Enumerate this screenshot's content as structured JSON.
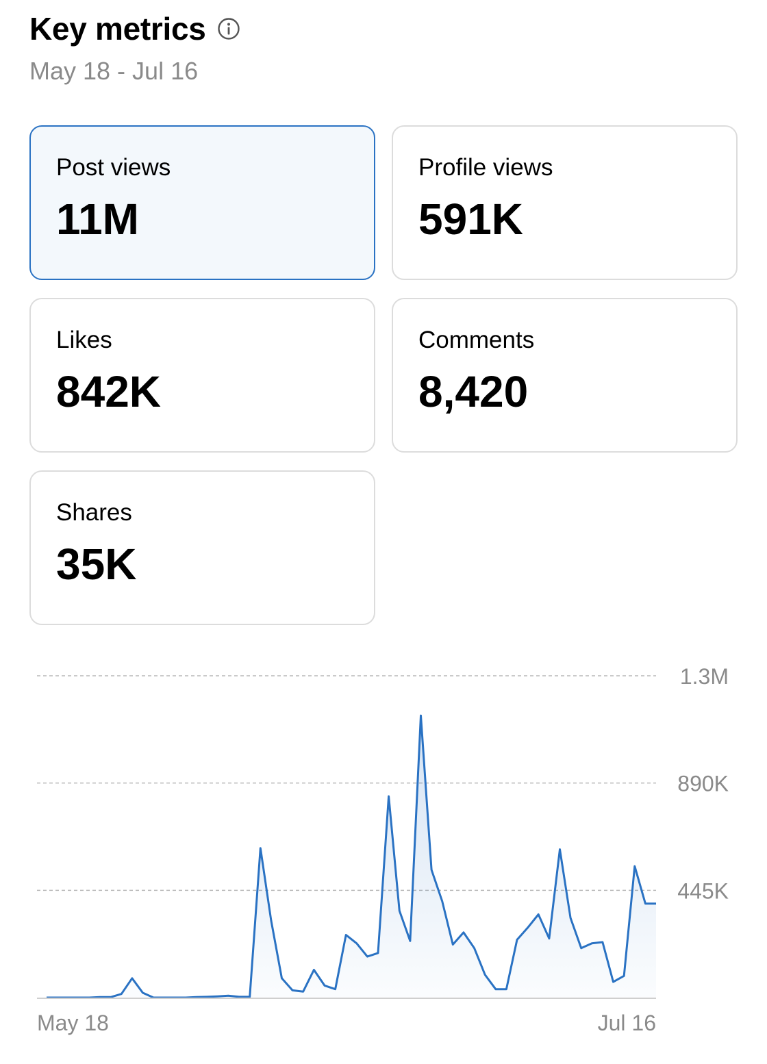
{
  "header": {
    "title": "Key metrics",
    "date_range": "May 18 - Jul 16",
    "info_icon": "info-circle-icon"
  },
  "colors": {
    "accent": "#2a72c3",
    "selected_background": "#f3f8fc",
    "card_border": "#dcdcdc",
    "muted_text": "#8a8a8a"
  },
  "cards": [
    {
      "label": "Post views",
      "value": "11M",
      "selected": true
    },
    {
      "label": "Profile views",
      "value": "591K",
      "selected": false
    },
    {
      "label": "Likes",
      "value": "842K",
      "selected": false
    },
    {
      "label": "Comments",
      "value": "8,420",
      "selected": false
    },
    {
      "label": "Shares",
      "value": "35K",
      "selected": false
    }
  ],
  "chart_data": {
    "type": "area",
    "series": [
      {
        "values": [
          0,
          0,
          0,
          0,
          0,
          2000,
          2000,
          15000,
          80000,
          20000,
          0,
          0,
          0,
          0,
          2000,
          3000,
          5000,
          8000,
          3000,
          3000,
          620000,
          320000,
          80000,
          30000,
          25000,
          115000,
          50000,
          35000,
          260000,
          225000,
          170000,
          185000,
          835000,
          360000,
          235000,
          1170000,
          530000,
          400000,
          220000,
          270000,
          205000,
          95000,
          35000,
          35000,
          240000,
          290000,
          345000,
          245000,
          615000,
          330000,
          205000,
          225000,
          230000,
          65000,
          90000,
          545000,
          390000,
          390000
        ]
      }
    ],
    "x_tick_labels": [
      "May 18",
      "Jul 16"
    ],
    "y_tick_labels": [
      "1.3M",
      "890K",
      "445K"
    ],
    "y_ticks": [
      1335000,
      890000,
      445000
    ],
    "ylim": [
      0,
      1335000
    ],
    "grid": true,
    "grid_style": "dashed horizontal",
    "legend": "none",
    "line_color": "#2a72c3"
  }
}
